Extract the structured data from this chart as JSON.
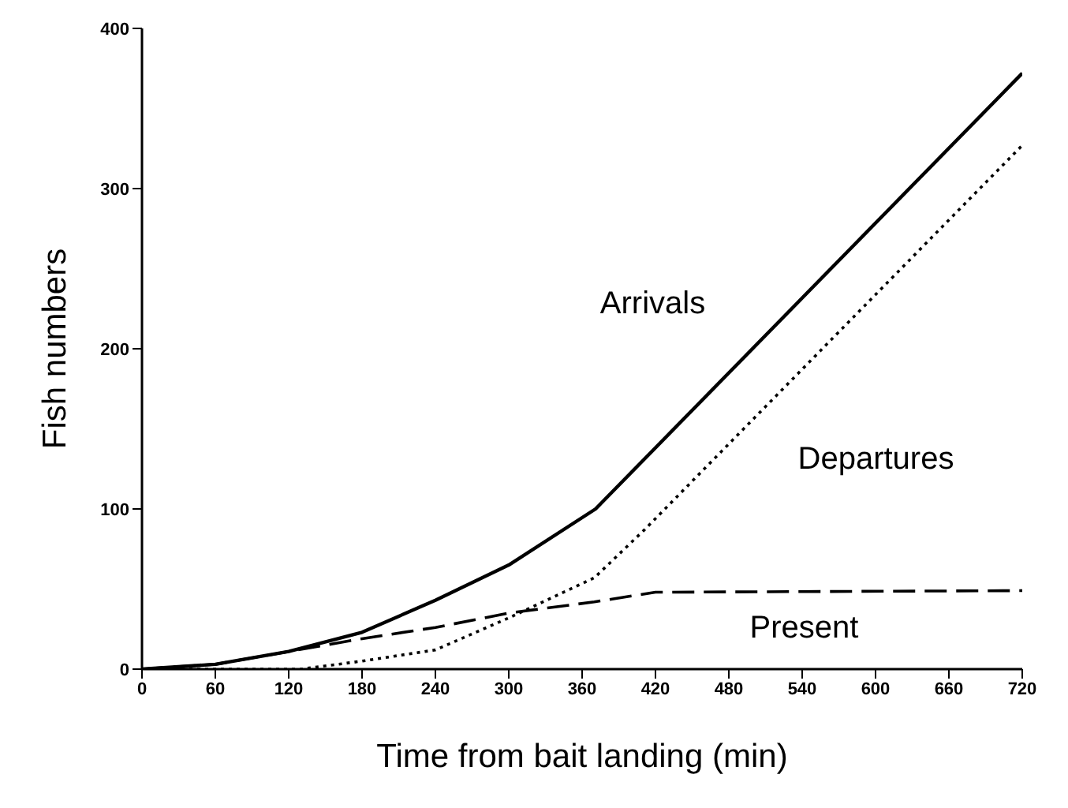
{
  "chart_data": {
    "type": "line",
    "xlabel": "Time from bait landing (min)",
    "ylabel": "Fish numbers",
    "xlim": [
      0,
      720
    ],
    "xticks": [
      0,
      60,
      120,
      180,
      240,
      300,
      360,
      420,
      480,
      540,
      600,
      660,
      720
    ],
    "ylim": [
      0,
      400
    ],
    "yticks": [
      0,
      100,
      200,
      300,
      400
    ],
    "grid": false,
    "legend": false,
    "marker": "none",
    "series": [
      {
        "name": "Arrivals",
        "color": "#000000",
        "line_style": "solid",
        "x": [
          0,
          60,
          120,
          180,
          240,
          300,
          371,
          720
        ],
        "values": [
          0,
          3,
          11,
          23,
          43,
          65,
          100,
          372
        ]
      },
      {
        "name": "Departures",
        "color": "#000000",
        "line_style": "dotted",
        "x": [
          0,
          130,
          180,
          240,
          300,
          370,
          411,
          720
        ],
        "values": [
          0,
          0,
          5,
          12,
          32,
          57,
          87,
          327
        ]
      },
      {
        "name": "Present",
        "color": "#000000",
        "line_style": "dashed",
        "x": [
          0,
          60,
          120,
          180,
          240,
          300,
          370,
          420,
          720
        ],
        "values": [
          0,
          3,
          11,
          19,
          26,
          35,
          42,
          48,
          49
        ]
      }
    ]
  }
}
